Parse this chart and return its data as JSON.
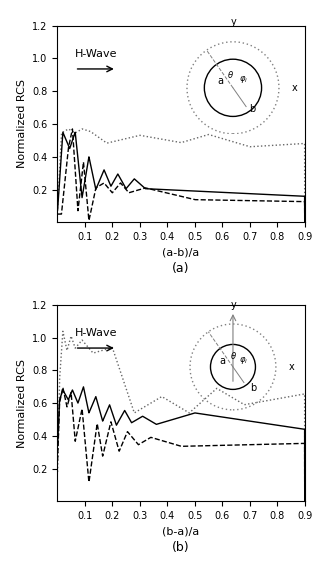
{
  "fig_width": 3.29,
  "fig_height": 5.71,
  "dpi": 100,
  "subplot_a": {
    "xlabel": "(a-b)/a",
    "ylabel": "Normalized RCS",
    "xlim": [
      0,
      0.9
    ],
    "ylim": [
      0,
      1.2
    ],
    "xticks": [
      0.1,
      0.2,
      0.3,
      0.4,
      0.5,
      0.6,
      0.7,
      0.8,
      0.9
    ],
    "yticks": [
      0.2,
      0.4,
      0.6,
      0.8,
      1.0,
      1.2
    ],
    "label": "(a)",
    "hwave_text": "H-Wave"
  },
  "subplot_b": {
    "xlabel": "(b-a)/a",
    "ylabel": "Normalized RCS",
    "xlim": [
      0,
      0.9
    ],
    "ylim": [
      0,
      1.2
    ],
    "xticks": [
      0.1,
      0.2,
      0.3,
      0.4,
      0.5,
      0.6,
      0.7,
      0.8,
      0.9
    ],
    "yticks": [
      0.2,
      0.4,
      0.6,
      0.8,
      1.0,
      1.2
    ],
    "label": "(b)",
    "hwave_text": "H-Wave"
  },
  "line_solid_color": "#000000",
  "line_dashed_color": "#000000",
  "line_dotted_color": "#666666",
  "bg_color": "#ffffff"
}
